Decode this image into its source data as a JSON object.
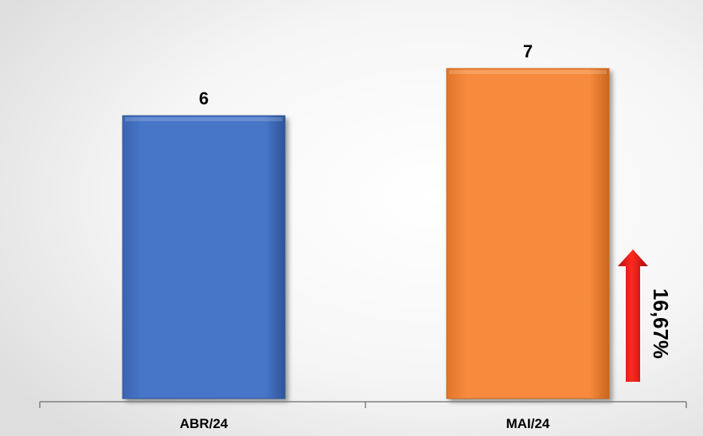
{
  "chart_data": {
    "type": "bar",
    "categories": [
      "ABR/24",
      "MAI/24"
    ],
    "values": [
      6,
      7
    ],
    "colors": [
      "#4472C4",
      "#F58634"
    ],
    "ylim": [
      0,
      8.2
    ],
    "grid": false,
    "legend": "none",
    "annotation": {
      "text": "16,67%",
      "arrow": "up",
      "arrow_color": "#E0201B"
    }
  }
}
